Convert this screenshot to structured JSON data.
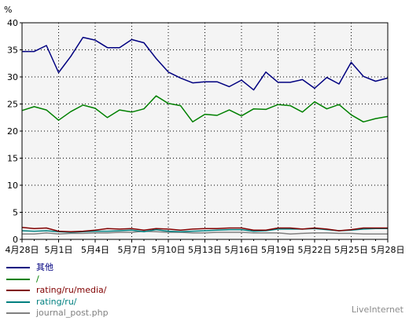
{
  "chart_data": {
    "type": "line",
    "ylabel": "%",
    "ylim": [
      0,
      40
    ],
    "yticks": [
      0,
      5,
      10,
      15,
      20,
      25,
      30,
      35,
      40
    ],
    "xticks": [
      "4月28日",
      "5月1日",
      "5月4日",
      "5月7日",
      "5月10日",
      "5月13日",
      "5月16日",
      "5月19日",
      "5月22日",
      "5月25日",
      "5月28日"
    ],
    "x": [
      "4月28日",
      "4月29日",
      "4月30日",
      "5月1日",
      "5月2日",
      "5月3日",
      "5月4日",
      "5月5日",
      "5月6日",
      "5月7日",
      "5月8日",
      "5月9日",
      "5月10日",
      "5月11日",
      "5月12日",
      "5月13日",
      "5月14日",
      "5月15日",
      "5月16日",
      "5月17日",
      "5月18日",
      "5月19日",
      "5月20日",
      "5月21日",
      "5月22日",
      "5月23日",
      "5月24日",
      "5月25日",
      "5月26日",
      "5月27日",
      "5月28日"
    ],
    "grid": true,
    "legend_position": "bottom-left",
    "series": [
      {
        "name": "其他",
        "color": "#000080",
        "values": [
          34.7,
          34.7,
          35.8,
          30.8,
          33.8,
          37.3,
          36.8,
          35.4,
          35.4,
          36.9,
          36.3,
          33.4,
          30.9,
          29.8,
          28.9,
          29.1,
          29.1,
          28.2,
          29.4,
          27.6,
          30.9,
          29.0,
          29.0,
          29.5,
          27.9,
          29.9,
          28.7,
          32.7,
          30.1,
          29.2,
          29.8
        ]
      },
      {
        "name": "/",
        "color": "#008000",
        "values": [
          23.8,
          24.5,
          23.9,
          22.0,
          23.6,
          24.8,
          24.2,
          22.5,
          23.9,
          23.5,
          24.1,
          26.5,
          25.1,
          24.7,
          21.7,
          23.1,
          22.9,
          23.9,
          22.8,
          24.1,
          24.0,
          24.9,
          24.7,
          23.5,
          25.4,
          24.1,
          24.9,
          23.0,
          21.7,
          22.3,
          22.7
        ]
      },
      {
        "name": "rating/ru/media/",
        "color": "#800000",
        "values": [
          2.2,
          2.0,
          2.1,
          1.5,
          1.4,
          1.5,
          1.7,
          2.0,
          1.9,
          2.0,
          1.7,
          2.0,
          1.9,
          1.7,
          1.9,
          2.0,
          2.0,
          2.1,
          2.1,
          1.7,
          1.7,
          2.1,
          2.1,
          1.9,
          2.1,
          1.9,
          1.6,
          1.8,
          2.1,
          2.1,
          2.1
        ]
      },
      {
        "name": "rating/ru/",
        "color": "#008080",
        "values": [
          1.6,
          1.5,
          1.6,
          1.4,
          1.3,
          1.4,
          1.5,
          1.5,
          1.6,
          1.7,
          1.4,
          1.8,
          1.5,
          1.4,
          1.5,
          1.6,
          1.7,
          1.8,
          1.8,
          1.5,
          1.6,
          1.9,
          1.9,
          1.9,
          2.0,
          1.8,
          1.6,
          1.7,
          1.9,
          2.0,
          2.0
        ]
      },
      {
        "name": "journal_post.php",
        "color": "#808080",
        "values": [
          1.0,
          1.0,
          1.2,
          1.0,
          1.1,
          1.1,
          1.2,
          1.2,
          1.3,
          1.3,
          1.5,
          1.4,
          1.3,
          1.3,
          1.2,
          1.2,
          1.3,
          1.3,
          1.3,
          1.2,
          1.2,
          1.2,
          1.0,
          1.1,
          1.2,
          1.2,
          1.1,
          1.1,
          1.0,
          1.0,
          1.0
        ]
      }
    ]
  },
  "brand": "LiveInternet"
}
